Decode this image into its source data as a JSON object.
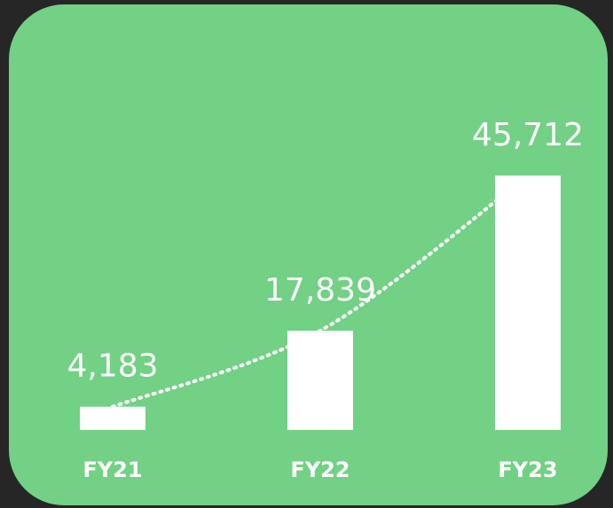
{
  "chart_data": {
    "type": "bar",
    "categories": [
      "FY21",
      "FY22",
      "FY23"
    ],
    "values": [
      4183,
      17839,
      45712
    ],
    "value_labels": [
      "4,183",
      "17,839",
      "45,712"
    ],
    "color": "#ffffff",
    "trend_line": true
  }
}
